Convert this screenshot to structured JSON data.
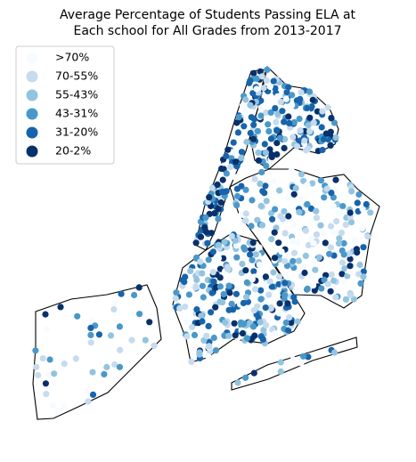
{
  "chart_data": {
    "type": "map",
    "title": [
      "Average Percentage of Students Passing ELA at",
      "Each school for All Grades from 2013-2017"
    ],
    "series": [
      {
        "name": ">70%",
        "color": "#f7fbff"
      },
      {
        "name": "70-55%",
        "color": "#c6dbef"
      },
      {
        "name": "55-43%",
        "color": "#93c4df"
      },
      {
        "name": "43-31%",
        "color": "#4a98c9"
      },
      {
        "name": "31-20%",
        "color": "#1764ab"
      },
      {
        "name": "20-2%",
        "color": "#08306b"
      }
    ],
    "legend": "upper left"
  }
}
